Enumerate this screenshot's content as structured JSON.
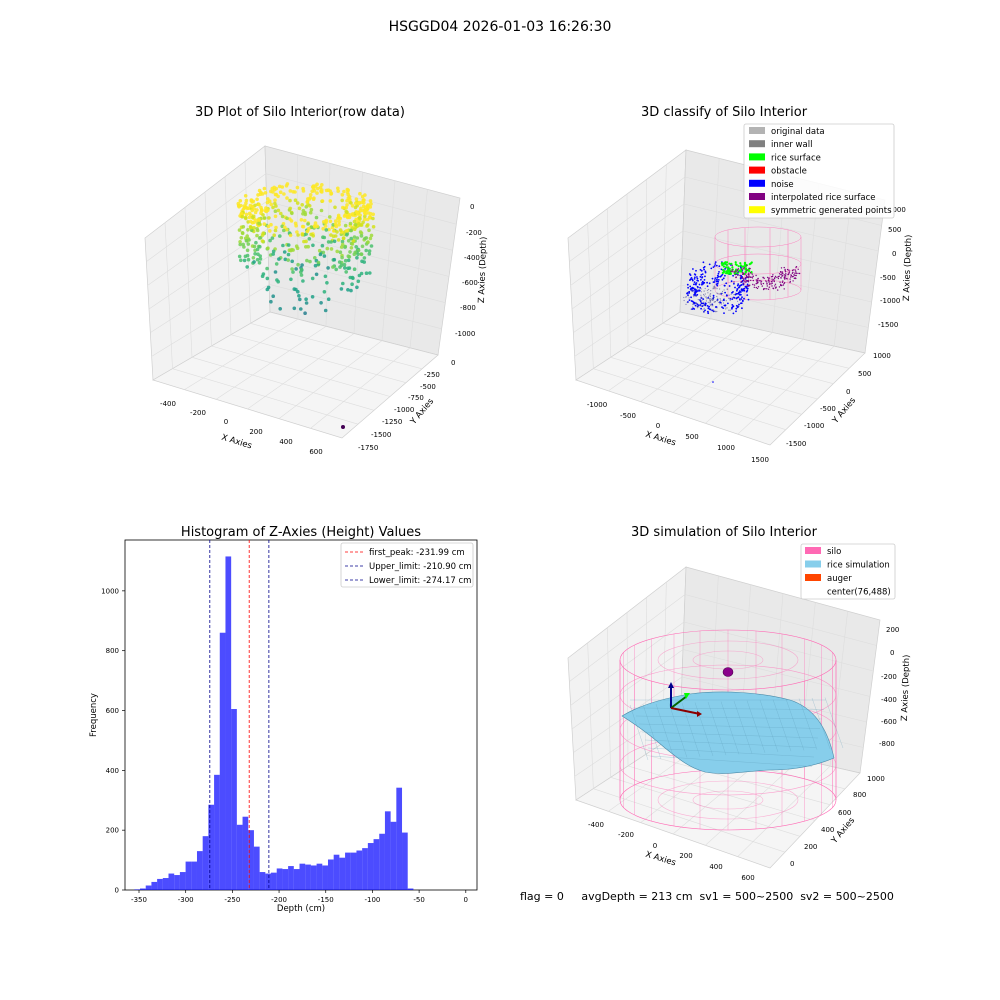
{
  "suptitle": "HSGGD04 2026-01-03 16:26:30",
  "panel1": {
    "title": "3D Plot of Silo Interior(row data)",
    "xlabel": "X Axies",
    "ylabel": "Y Axies",
    "zlabel": "Z Axies (Depth)",
    "xticks": [
      "-400",
      "-200",
      "0",
      "200",
      "400",
      "600"
    ],
    "yticks": [
      "0",
      "-250",
      "-500",
      "-750",
      "-1000",
      "-1250",
      "-1500",
      "-1750"
    ],
    "zticks": [
      "0",
      "-200",
      "-400",
      "-600",
      "-800",
      "-1000"
    ]
  },
  "panel2": {
    "title": "3D classify of Silo Interior",
    "xlabel": "X Axies",
    "ylabel": "Y Axies",
    "zlabel": "Z Axies (Depth)",
    "xticks": [
      "-1000",
      "-500",
      "0",
      "500",
      "1000",
      "1500"
    ],
    "yticks": [
      "1000",
      "500",
      "0",
      "-500",
      "-1000",
      "-1500"
    ],
    "zticks": [
      "1000",
      "500",
      "0",
      "-500",
      "-1000",
      "-1500"
    ],
    "legend": [
      {
        "label": "original data",
        "color": "#b3b3b3"
      },
      {
        "label": "inner wall",
        "color": "#808080"
      },
      {
        "label": "rice surface",
        "color": "#00ff00"
      },
      {
        "label": "obstacle",
        "color": "#ff0000"
      },
      {
        "label": "noise",
        "color": "#0000ff"
      },
      {
        "label": "interpolated rice surface",
        "color": "#800080"
      },
      {
        "label": "symmetric generated points",
        "color": "#ffff00"
      }
    ]
  },
  "panel4": {
    "title": "3D simulation of Silo Interior",
    "xlabel": "X Axies",
    "ylabel": "Y Axies",
    "zlabel": "Z Axies (Depth)",
    "xticks": [
      "-400",
      "-200",
      "0",
      "200",
      "400",
      "600"
    ],
    "yticks": [
      "1000",
      "800",
      "600",
      "400",
      "200",
      "0"
    ],
    "zticks": [
      "200",
      "0",
      "-200",
      "-400",
      "-600",
      "-800"
    ],
    "legend": [
      {
        "label": "silo",
        "color": "#ff69b4"
      },
      {
        "label": "rice simulation",
        "color": "#87ceeb"
      },
      {
        "label": "auger",
        "color": "#ff4500"
      },
      {
        "label": "center(76,488)",
        "color": ""
      }
    ]
  },
  "footer": "flag = 0     avgDepth = 213 cm  sv1 = 500~2500  sv2 = 500~2500",
  "chart_data": [
    {
      "type": "scatter",
      "title": "3D Plot of Silo Interior(row data)",
      "xlabel": "X Axies",
      "ylabel": "Y Axies",
      "zlabel": "Z Axies (Depth)",
      "xlim": [
        -500,
        700
      ],
      "ylim": [
        -1800,
        0
      ],
      "zlim": [
        -1000,
        0
      ],
      "note_colors": [
        "#fde725",
        "#35b779",
        "#21918c",
        "#440154"
      ]
    },
    {
      "type": "scatter",
      "title": "3D classify of Silo Interior",
      "xlabel": "X Axies",
      "ylabel": "Y Axies",
      "zlabel": "Z Axies (Depth)",
      "xlim": [
        -1200,
        1500
      ],
      "ylim": [
        -1500,
        1000
      ],
      "zlim": [
        -1500,
        1000
      ],
      "series": [
        {
          "name": "original data"
        },
        {
          "name": "inner wall"
        },
        {
          "name": "rice surface"
        },
        {
          "name": "obstacle"
        },
        {
          "name": "noise"
        },
        {
          "name": "interpolated rice surface"
        },
        {
          "name": "symmetric generated points"
        }
      ]
    },
    {
      "type": "bar",
      "title": "Histogram of Z-Axies (Height) Values",
      "xlabel": "Depth (cm)",
      "ylabel": "Frequency",
      "xlim": [
        -365,
        12
      ],
      "ylim": [
        0,
        1170
      ],
      "xticks": [
        -350,
        -300,
        -250,
        -200,
        -150,
        -100,
        -50,
        0
      ],
      "yticks": [
        0,
        200,
        400,
        600,
        800,
        1000
      ],
      "bin_start": -355,
      "bin_width": 6.1,
      "values": [
        2,
        5,
        15,
        27,
        37,
        40,
        55,
        50,
        60,
        95,
        95,
        130,
        180,
        285,
        385,
        860,
        1115,
        605,
        218,
        245,
        200,
        145,
        60,
        55,
        58,
        72,
        70,
        80,
        70,
        88,
        85,
        82,
        88,
        82,
        102,
        118,
        108,
        125,
        125,
        132,
        140,
        157,
        170,
        188,
        263,
        228,
        342,
        192,
        5
      ],
      "bar_color": "#0000ff",
      "lines": [
        {
          "label": "first_peak: -231.99 cm",
          "x": -231.99,
          "color": "#ff0000"
        },
        {
          "label": "Upper_limit: -210.90 cm",
          "x": -210.9,
          "color": "#00008b"
        },
        {
          "label": "Lower_limit: -274.17 cm",
          "x": -274.17,
          "color": "#00008b"
        }
      ]
    },
    {
      "type": "scatter",
      "title": "3D simulation of Silo Interior",
      "xlabel": "X Axies",
      "ylabel": "Y Axies",
      "zlabel": "Z Axies (Depth)",
      "xlim": [
        -500,
        700
      ],
      "ylim": [
        0,
        1050
      ],
      "zlim": [
        -900,
        250
      ],
      "series": [
        {
          "name": "silo"
        },
        {
          "name": "rice simulation"
        },
        {
          "name": "auger"
        },
        {
          "name": "center(76,488)"
        }
      ]
    }
  ]
}
